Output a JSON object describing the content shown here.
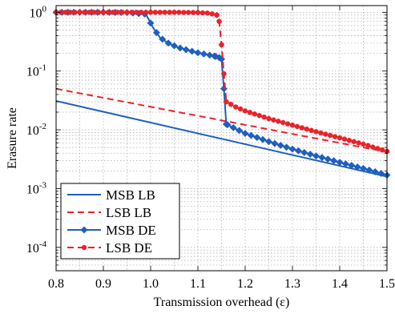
{
  "chart_data": {
    "type": "line",
    "xlabel": "Transmission overhead (ε)",
    "ylabel": "Erasure rate",
    "xlim": [
      0.8,
      1.5
    ],
    "ylim": [
      4e-05,
      1.3
    ],
    "yscale": "log",
    "grid": true,
    "legend_position": "bottom-left",
    "x_ticks": [
      {
        "value": 0.8,
        "label": "0.8"
      },
      {
        "value": 0.9,
        "label": "0.9"
      },
      {
        "value": 1.0,
        "label": "1.0"
      },
      {
        "value": 1.1,
        "label": "1.1"
      },
      {
        "value": 1.2,
        "label": "1.2"
      },
      {
        "value": 1.3,
        "label": "1.3"
      },
      {
        "value": 1.4,
        "label": "1.4"
      },
      {
        "value": 1.5,
        "label": "1.5"
      }
    ],
    "y_ticks": [
      {
        "value": 0.0001,
        "base": "10",
        "exp": "-4"
      },
      {
        "value": 0.001,
        "base": "10",
        "exp": "-3"
      },
      {
        "value": 0.01,
        "base": "10",
        "exp": "-2"
      },
      {
        "value": 0.1,
        "base": "10",
        "exp": "-1"
      },
      {
        "value": 1,
        "base": "10",
        "exp": "0"
      }
    ],
    "series": [
      {
        "name": "MSB LB",
        "color": "#1f5fbf",
        "dash": "solid",
        "marker": "none",
        "x": [
          0.8,
          1.5
        ],
        "y": [
          0.031,
          0.0016
        ]
      },
      {
        "name": "LSB LB",
        "color": "#e8232a",
        "dash": "dashed",
        "marker": "none",
        "x": [
          0.8,
          1.5
        ],
        "y": [
          0.05,
          0.0042
        ]
      },
      {
        "name": "MSB DE",
        "color": "#1f5fbf",
        "dash": "solid",
        "marker": "diamond",
        "x": [
          0.8,
          0.85,
          0.9,
          0.95,
          0.99,
          1.005,
          1.02,
          1.04,
          1.06,
          1.08,
          1.1,
          1.12,
          1.135,
          1.145,
          1.15,
          1.155,
          1.16,
          1.18,
          1.2,
          1.25,
          1.3,
          1.35,
          1.4,
          1.45,
          1.5
        ],
        "y": [
          1.0,
          1.0,
          1.0,
          0.99,
          0.93,
          0.55,
          0.37,
          0.29,
          0.25,
          0.225,
          0.205,
          0.19,
          0.18,
          0.17,
          0.16,
          0.05,
          0.0125,
          0.0104,
          0.0087,
          0.0063,
          0.0047,
          0.0036,
          0.0028,
          0.0022,
          0.0017
        ]
      },
      {
        "name": "LSB DE",
        "color": "#e8232a",
        "dash": "dashed",
        "marker": "circle",
        "x": [
          0.8,
          0.9,
          1.0,
          1.05,
          1.1,
          1.12,
          1.13,
          1.14,
          1.145,
          1.15,
          1.155,
          1.16,
          1.18,
          1.2,
          1.25,
          1.3,
          1.35,
          1.4,
          1.45,
          1.5
        ],
        "y": [
          1.0,
          1.0,
          1.0,
          1.0,
          0.99,
          0.97,
          0.94,
          0.9,
          0.7,
          0.28,
          0.09,
          0.03,
          0.0245,
          0.021,
          0.0155,
          0.012,
          0.0093,
          0.0073,
          0.0057,
          0.0043
        ]
      }
    ]
  }
}
